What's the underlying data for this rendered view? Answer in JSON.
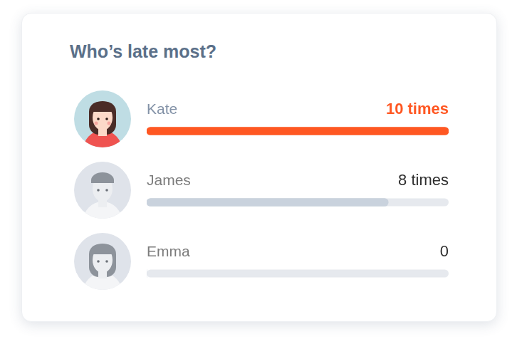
{
  "chart_data": {
    "type": "bar",
    "title": "Who’s late most?",
    "orientation": "horizontal",
    "categories": [
      "Kate",
      "James",
      "Emma"
    ],
    "values": [
      10,
      8,
      0
    ],
    "value_labels": [
      "10 times",
      "8 times",
      "0"
    ],
    "colors": [
      "#ff5722",
      "#c9d2dd",
      "#c9d2dd"
    ],
    "xlim": [
      0,
      10
    ],
    "grid": false,
    "tick_labels": false,
    "data_labels": true
  }
}
